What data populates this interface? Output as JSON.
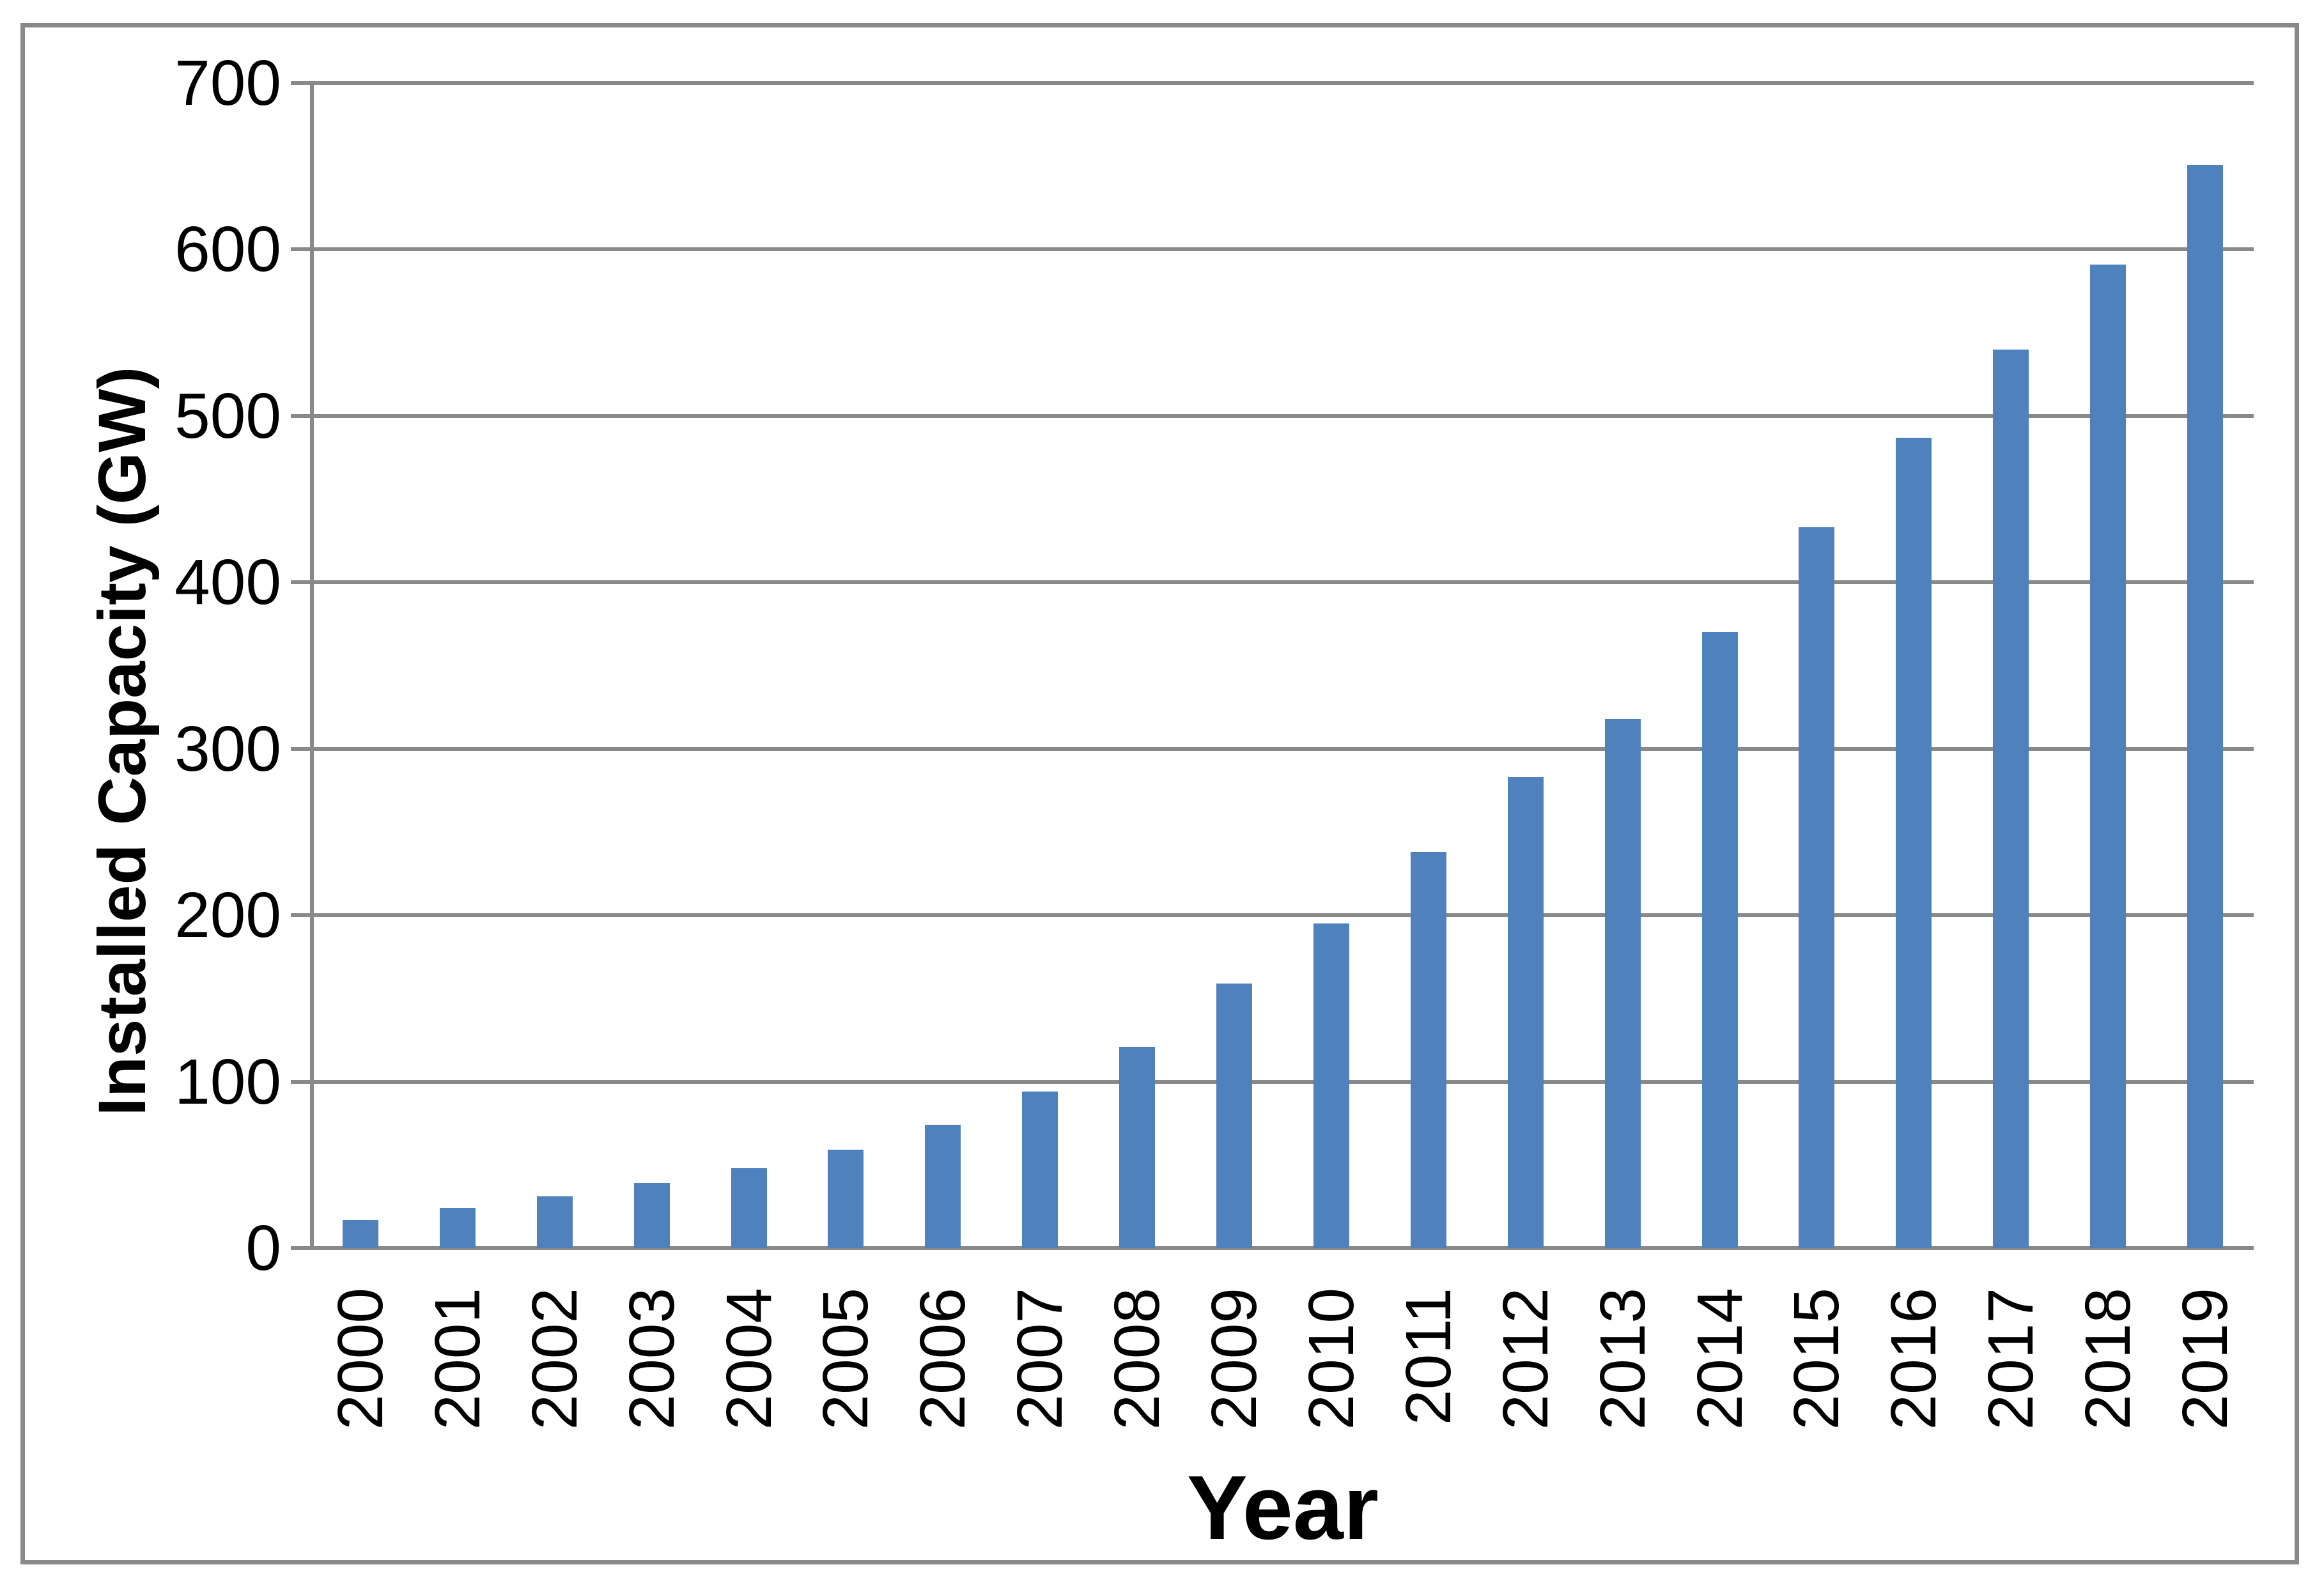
{
  "chart_data": {
    "type": "bar",
    "title": "",
    "categories": [
      "2000",
      "2001",
      "2002",
      "2003",
      "2004",
      "2005",
      "2006",
      "2007",
      "2008",
      "2009",
      "2010",
      "2011",
      "2012",
      "2013",
      "2014",
      "2015",
      "2016",
      "2017",
      "2018",
      "2019"
    ],
    "values": [
      17,
      24,
      31,
      39,
      48,
      59,
      74,
      94,
      121,
      159,
      195,
      238,
      283,
      318,
      370,
      433,
      487,
      540,
      591,
      651
    ],
    "xlabel": "Year",
    "ylabel": "Installed Capacity (GW)",
    "ylim": [
      0,
      700
    ],
    "yticks": [
      0,
      100,
      200,
      300,
      400,
      500,
      600,
      700
    ],
    "grid": true,
    "legend_position": "none",
    "bar_color": "#4F81BD",
    "axis_color": "#898989",
    "frame_color": "#898989",
    "text_color": "#000000"
  }
}
